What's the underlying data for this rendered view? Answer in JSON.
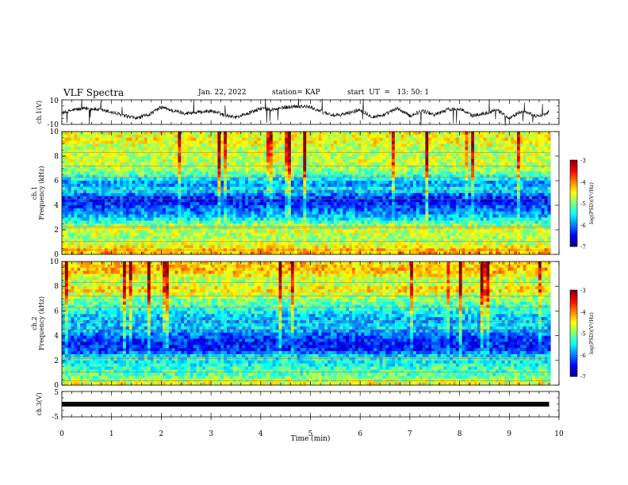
{
  "header": {
    "title": "VLF Spectra",
    "date": "Jan. 22, 2022",
    "station": "station= KAP",
    "start": "start  UT  =   13: 50: 1"
  },
  "chart_data": [
    {
      "type": "line",
      "panel": "ch1-waveform",
      "ylabel": "ch.1(V)",
      "ylim": [
        -10,
        10
      ],
      "ytick_labels": [
        "10",
        "-10"
      ],
      "xlim": [
        0,
        10
      ],
      "series": [
        {
          "color": "#000000",
          "x": [
            0,
            0.25,
            0.5,
            0.75,
            1.0,
            1.25,
            1.5,
            1.75,
            2.0,
            2.25,
            2.5,
            2.75,
            3.0,
            3.25,
            3.5,
            3.75,
            4.0,
            4.25,
            4.5,
            4.75,
            5.0,
            5.25,
            5.5,
            5.75,
            6.0,
            6.25,
            6.5,
            6.75,
            7.0,
            7.25,
            7.5,
            7.75,
            8.0,
            8.25,
            8.5,
            8.75,
            9.0,
            9.25,
            9.5,
            9.75,
            9.8
          ],
          "values": [
            -1,
            2,
            3,
            2,
            0,
            -3,
            -5,
            -2,
            4,
            1,
            -1,
            0,
            1,
            -2,
            -4,
            -1,
            3,
            2,
            4,
            5,
            4,
            0,
            -3,
            -1,
            2,
            -4,
            -2,
            3,
            -3,
            1,
            -2,
            2,
            3,
            -3,
            -1,
            2,
            -5,
            1,
            -3,
            -2,
            1
          ]
        }
      ]
    },
    {
      "type": "heatmap",
      "panel": "ch1-spectrogram",
      "ylabel": "ch.1\nFrequency (kHz)",
      "ylim": [
        0,
        10
      ],
      "yticks": [
        0,
        2,
        4,
        6,
        8,
        10
      ],
      "xlim": [
        0,
        10
      ],
      "colorbar": {
        "label": "log(PSD)(V²/Hz)",
        "range": [
          -7,
          -3
        ],
        "ticks": [
          -7,
          -6,
          -5,
          -4,
          -3
        ]
      },
      "band_profile": {
        "freq_khz": [
          0.25,
          0.75,
          1.25,
          1.75,
          2.25,
          2.75,
          3.25,
          3.75,
          4.25,
          4.75,
          5.25,
          5.75,
          6.25,
          6.75,
          7.25,
          7.75,
          8.25,
          8.75,
          9.25,
          9.75
        ],
        "log_psd": [
          -4.2,
          -4.6,
          -4.9,
          -4.7,
          -4.8,
          -5.4,
          -5.9,
          -6.1,
          -6.5,
          -6.2,
          -5.5,
          -6.0,
          -5.4,
          -5.0,
          -4.8,
          -4.7,
          -4.8,
          -4.7,
          -4.5,
          -4.6
        ]
      }
    },
    {
      "type": "heatmap",
      "panel": "ch2-spectrogram",
      "ylabel": "ch.2\nFrequency (kHz)",
      "ylim": [
        0,
        10
      ],
      "yticks": [
        0,
        2,
        4,
        6,
        8,
        10
      ],
      "xlim": [
        0,
        10
      ],
      "colorbar": {
        "label": "log(PSD)(V²/Hz)",
        "range": [
          -7,
          -3
        ],
        "ticks": [
          -7,
          -6,
          -5,
          -4,
          -3
        ]
      },
      "band_profile": {
        "freq_khz": [
          0.25,
          0.75,
          1.25,
          1.75,
          2.25,
          2.75,
          3.25,
          3.75,
          4.25,
          4.75,
          5.25,
          5.75,
          6.25,
          6.75,
          7.25,
          7.75,
          8.25,
          8.75,
          9.25,
          9.75
        ],
        "log_psd": [
          -4.6,
          -5.2,
          -5.2,
          -5.5,
          -5.4,
          -6.3,
          -6.4,
          -6.3,
          -6.0,
          -5.6,
          -5.8,
          -5.6,
          -5.3,
          -5.1,
          -4.8,
          -4.3,
          -4.9,
          -4.6,
          -4.2,
          -4.4
        ]
      }
    },
    {
      "type": "line",
      "panel": "ch3-waveform",
      "ylabel": "ch.3(V)",
      "ylim": [
        -5,
        5
      ],
      "ytick_labels": [
        "5",
        "-5"
      ],
      "xlim": [
        0,
        10
      ],
      "xlabel": "Time (min)",
      "xticks": [
        0,
        1,
        2,
        3,
        4,
        5,
        6,
        7,
        8,
        9,
        10
      ],
      "series": [
        {
          "color": "#000000",
          "x": [
            0,
            9.8
          ],
          "values": [
            0,
            0
          ]
        }
      ]
    }
  ]
}
